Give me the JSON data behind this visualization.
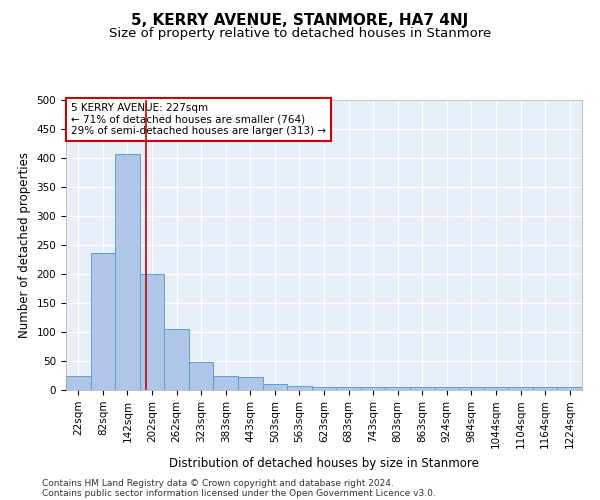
{
  "title": "5, KERRY AVENUE, STANMORE, HA7 4NJ",
  "subtitle": "Size of property relative to detached houses in Stanmore",
  "xlabel": "Distribution of detached houses by size in Stanmore",
  "ylabel": "Number of detached properties",
  "bar_values": [
    25,
    237,
    407,
    200,
    105,
    49,
    24,
    22,
    11,
    7,
    5,
    5,
    5,
    5,
    5,
    5,
    5,
    5,
    5,
    5,
    5
  ],
  "x_labels": [
    "22sqm",
    "82sqm",
    "142sqm",
    "202sqm",
    "262sqm",
    "323sqm",
    "383sqm",
    "443sqm",
    "503sqm",
    "563sqm",
    "623sqm",
    "683sqm",
    "743sqm",
    "803sqm",
    "863sqm",
    "924sqm",
    "984sqm",
    "1044sqm",
    "1104sqm",
    "1164sqm",
    "1224sqm"
  ],
  "bar_color": "#aec6e8",
  "bar_edge_color": "#5a9fd4",
  "red_line_x": 2.75,
  "annotation_text": "5 KERRY AVENUE: 227sqm\n← 71% of detached houses are smaller (764)\n29% of semi-detached houses are larger (313) →",
  "annotation_box_color": "#ffffff",
  "annotation_box_edge": "#cc0000",
  "ylim": [
    0,
    500
  ],
  "yticks": [
    0,
    50,
    100,
    150,
    200,
    250,
    300,
    350,
    400,
    450,
    500
  ],
  "background_color": "#e8eef8",
  "footer_line1": "Contains HM Land Registry data © Crown copyright and database right 2024.",
  "footer_line2": "Contains public sector information licensed under the Open Government Licence v3.0.",
  "title_fontsize": 11,
  "subtitle_fontsize": 9.5,
  "axis_label_fontsize": 8.5,
  "tick_fontsize": 7.5,
  "annotation_fontsize": 7.5,
  "footer_fontsize": 6.5
}
